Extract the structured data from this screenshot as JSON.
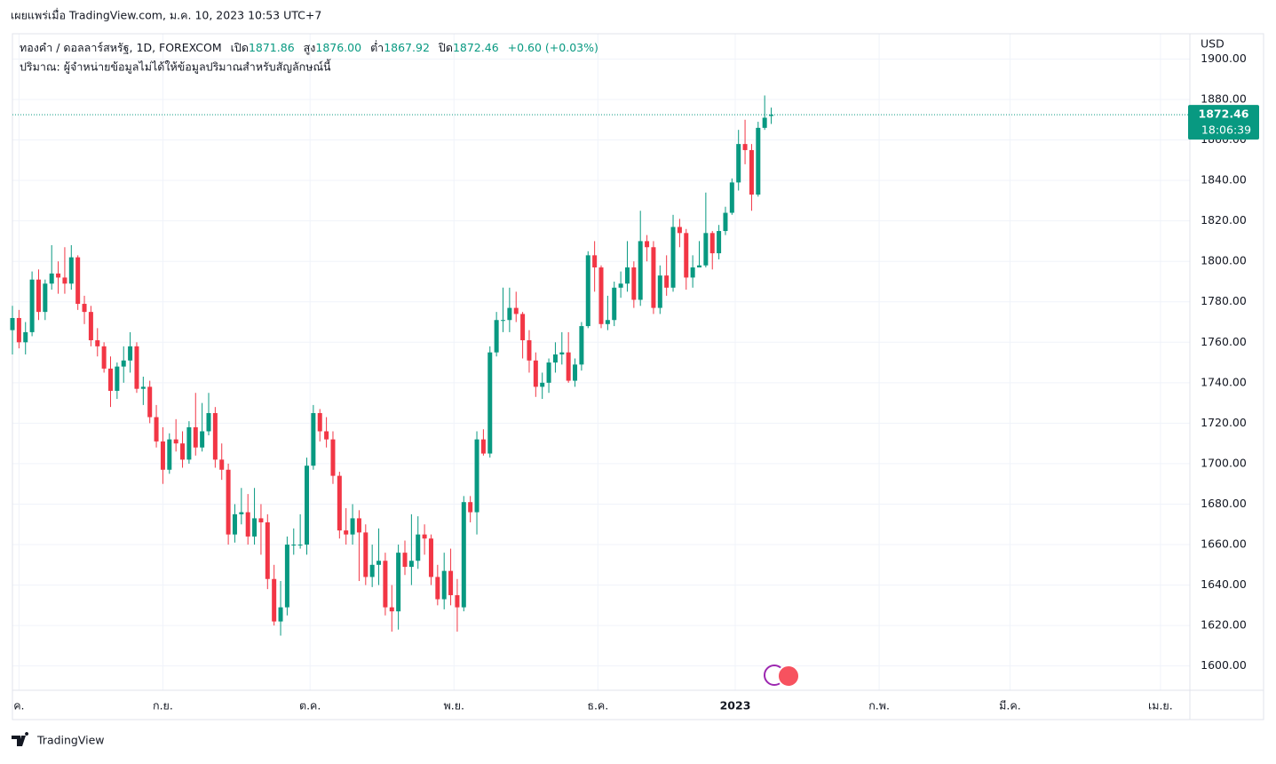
{
  "header": {
    "published": "เผยแพร่เมื่อ TradingView.com, ม.ค. 10, 2023 10:53 UTC+7",
    "symbol": "ทองคำ / ดอลลาร์สหรัฐ, 1D, FOREXCOM",
    "open_label": "เปิด",
    "open": "1871.86",
    "high_label": "สูง",
    "high": "1876.00",
    "low_label": "ต่ำ",
    "low": "1867.92",
    "close_label": "ปิด",
    "close": "1872.46",
    "change": "+0.60 (+0.03%)",
    "volume_note": "ปริมาณ: ผู้จำหน่ายข้อมูลไม่ได้ให้ข้อมูลปริมาณสำหรับสัญลักษณ์นี้",
    "brand": "TradingView"
  },
  "chart_data": {
    "type": "candlestick",
    "currency": "USD",
    "countdown": "18:06:39",
    "up_color": "#089981",
    "down_color": "#f23645",
    "grid": true,
    "xlim": [
      0,
      180
    ],
    "ylim": [
      1588,
      1912.5
    ],
    "xticks": [
      {
        "value": 1,
        "label": "ค."
      },
      {
        "value": 23,
        "label": "ก.ย."
      },
      {
        "value": 45.5,
        "label": "ต.ค."
      },
      {
        "value": 67.5,
        "label": "พ.ย."
      },
      {
        "value": 89.5,
        "label": "ธ.ค."
      },
      {
        "value": 110.5,
        "label": "2023"
      },
      {
        "value": 132.5,
        "label": "ก.พ."
      },
      {
        "value": 152.5,
        "label": "มี.ค."
      },
      {
        "value": 175.5,
        "label": "เม.ย."
      }
    ],
    "yticks": [
      {
        "value": 1600,
        "label": "1600.00"
      },
      {
        "value": 1620,
        "label": "1620.00"
      },
      {
        "value": 1640,
        "label": "1640.00"
      },
      {
        "value": 1660,
        "label": "1660.00"
      },
      {
        "value": 1680,
        "label": "1680.00"
      },
      {
        "value": 1700,
        "label": "1700.00"
      },
      {
        "value": 1720,
        "label": "1720.00"
      },
      {
        "value": 1740,
        "label": "1740.00"
      },
      {
        "value": 1760,
        "label": "1760.00"
      },
      {
        "value": 1780,
        "label": "1780.00"
      },
      {
        "value": 1800,
        "label": "1800.00"
      },
      {
        "value": 1820,
        "label": "1820.00"
      },
      {
        "value": 1840,
        "label": "1840.00"
      },
      {
        "value": 1860,
        "label": "1860.00"
      },
      {
        "value": 1880,
        "label": "1880.00"
      },
      {
        "value": 1900,
        "label": "1900.00"
      }
    ],
    "open": [
      1766,
      1772,
      1760,
      1765,
      1791,
      1775,
      1789,
      1794,
      1792,
      1789,
      1802,
      1779,
      1775,
      1761,
      1758,
      1747,
      1736,
      1748,
      1751,
      1758,
      1737,
      1738,
      1723,
      1711,
      1697,
      1712,
      1710,
      1702,
      1718,
      1708,
      1716,
      1725,
      1702,
      1697,
      1665,
      1675,
      1676,
      1664,
      1673,
      1671,
      1643,
      1622,
      1629,
      1660,
      1660,
      1660,
      1699,
      1725,
      1716,
      1712,
      1694,
      1667,
      1665,
      1673,
      1666,
      1644,
      1650,
      1652,
      1629,
      1627,
      1656,
      1649,
      1652,
      1665,
      1663,
      1644,
      1633,
      1647,
      1635,
      1629,
      1681,
      1676,
      1712,
      1705,
      1755,
      1771,
      1771,
      1777,
      1774,
      1761,
      1751,
      1738,
      1740,
      1750,
      1754,
      1755,
      1741,
      1749,
      1768,
      1803,
      1797,
      1769,
      1771,
      1787,
      1789,
      1797,
      1781,
      1810,
      1807,
      1777,
      1793,
      1787,
      1817,
      1814,
      1792,
      1797,
      1798,
      1814,
      1804,
      1815,
      1824,
      1839,
      1858,
      1855,
      1833,
      1866,
      1871.86
    ],
    "high": [
      1778,
      1776,
      1770,
      1795,
      1796,
      1791,
      1808,
      1800,
      1807,
      1808,
      1803,
      1783,
      1778,
      1767,
      1760,
      1753,
      1750,
      1758,
      1765,
      1760,
      1743,
      1741,
      1729,
      1718,
      1715,
      1722,
      1716,
      1721,
      1735,
      1730,
      1735,
      1728,
      1710,
      1700,
      1680,
      1688,
      1685,
      1688,
      1680,
      1675,
      1650,
      1642,
      1664,
      1668,
      1675,
      1703,
      1729,
      1727,
      1723,
      1716,
      1696,
      1678,
      1680,
      1677,
      1670,
      1660,
      1668,
      1656,
      1640,
      1660,
      1662,
      1675,
      1674,
      1670,
      1665,
      1650,
      1656,
      1658,
      1643,
      1684,
      1684,
      1716,
      1717,
      1758,
      1775,
      1787,
      1787,
      1785,
      1775,
      1766,
      1755,
      1745,
      1752,
      1760,
      1765,
      1765,
      1752,
      1770,
      1805,
      1810,
      1798,
      1783,
      1790,
      1795,
      1810,
      1800,
      1825,
      1813,
      1810,
      1798,
      1803,
      1823,
      1821,
      1816,
      1803,
      1810,
      1834,
      1815,
      1818,
      1827,
      1841,
      1865,
      1870,
      1858,
      1869,
      1882,
      1876
    ],
    "low": [
      1754,
      1757,
      1754,
      1763,
      1771,
      1771,
      1786,
      1784,
      1784,
      1786,
      1776,
      1769,
      1758,
      1753,
      1745,
      1728,
      1732,
      1740,
      1745,
      1735,
      1729,
      1720,
      1708,
      1690,
      1695,
      1706,
      1698,
      1700,
      1704,
      1706,
      1714,
      1698,
      1692,
      1660,
      1661,
      1670,
      1660,
      1660,
      1655,
      1638,
      1620,
      1615,
      1625,
      1655,
      1658,
      1655,
      1697,
      1711,
      1708,
      1690,
      1663,
      1660,
      1660,
      1642,
      1640,
      1639,
      1640,
      1625,
      1617,
      1618,
      1645,
      1640,
      1648,
      1655,
      1640,
      1630,
      1628,
      1630,
      1617,
      1627,
      1671,
      1665,
      1704,
      1703,
      1753,
      1765,
      1765,
      1770,
      1752,
      1745,
      1733,
      1732,
      1735,
      1745,
      1749,
      1740,
      1738,
      1746,
      1767,
      1785,
      1767,
      1766,
      1768,
      1782,
      1785,
      1777,
      1778,
      1800,
      1774,
      1774,
      1783,
      1785,
      1807,
      1786,
      1787,
      1797,
      1797,
      1796,
      1801,
      1813,
      1823,
      1835,
      1848,
      1825,
      1832,
      1865,
      1867.92
    ],
    "close": [
      1772,
      1760,
      1765,
      1791,
      1775,
      1789,
      1794,
      1792,
      1789,
      1802,
      1779,
      1775,
      1761,
      1758,
      1747,
      1736,
      1748,
      1751,
      1758,
      1737,
      1738,
      1723,
      1711,
      1697,
      1712,
      1710,
      1702,
      1718,
      1708,
      1716,
      1725,
      1702,
      1697,
      1665,
      1675,
      1676,
      1664,
      1673,
      1671,
      1643,
      1622,
      1629,
      1660,
      1660,
      1660,
      1699,
      1725,
      1716,
      1712,
      1694,
      1667,
      1665,
      1673,
      1666,
      1644,
      1650,
      1652,
      1629,
      1627,
      1656,
      1649,
      1652,
      1665,
      1663,
      1644,
      1633,
      1647,
      1635,
      1629,
      1681,
      1676,
      1712,
      1705,
      1755,
      1771,
      1771,
      1777,
      1774,
      1761,
      1751,
      1738,
      1740,
      1750,
      1754,
      1755,
      1741,
      1749,
      1768,
      1803,
      1797,
      1769,
      1771,
      1787,
      1789,
      1797,
      1781,
      1810,
      1807,
      1777,
      1793,
      1787,
      1817,
      1814,
      1792,
      1797,
      1798,
      1814,
      1804,
      1815,
      1824,
      1839,
      1858,
      1855,
      1833,
      1866,
      1871,
      1872.46
    ]
  }
}
